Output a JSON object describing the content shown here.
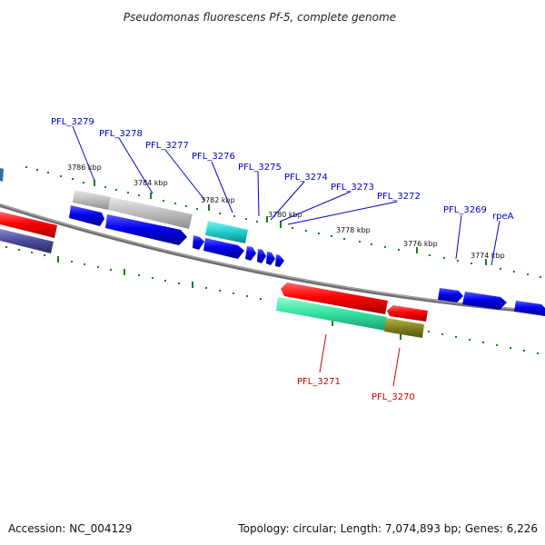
{
  "title": "Pseudomonas fluorescens Pf-5, complete genome",
  "footer": {
    "accession": "Accession: NC_004129",
    "summary": "Topology: circular; Length: 7,074,893 bp; Genes: 6,226"
  },
  "colors": {
    "forward_label": "#0000cc",
    "reverse_label": "#cc0000",
    "tick": "#1a7f1a",
    "backbone": "#808080"
  },
  "ticks": [
    {
      "label": "3786 kbp"
    },
    {
      "label": "3784 kbp"
    },
    {
      "label": "3782 kbp"
    },
    {
      "label": "3780 kbp"
    },
    {
      "label": "3778 kbp"
    },
    {
      "label": "3776 kbp"
    },
    {
      "label": "3774 kbp"
    }
  ],
  "forward_labels": [
    {
      "text": "PFL_3279"
    },
    {
      "text": "PFL_3278"
    },
    {
      "text": "PFL_3277"
    },
    {
      "text": "PFL_3276"
    },
    {
      "text": "PFL_3275"
    },
    {
      "text": "PFL_3274"
    },
    {
      "text": "PFL_3273"
    },
    {
      "text": "PFL_3272"
    },
    {
      "text": "PFL_3269"
    },
    {
      "text": "rpeA"
    }
  ],
  "reverse_labels": [
    {
      "text": "PFL_3271"
    },
    {
      "text": "PFL_3270"
    }
  ]
}
